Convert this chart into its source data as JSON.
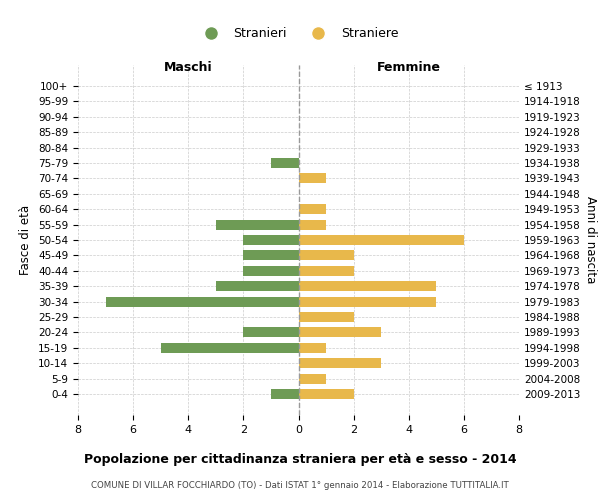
{
  "age_groups": [
    "100+",
    "95-99",
    "90-94",
    "85-89",
    "80-84",
    "75-79",
    "70-74",
    "65-69",
    "60-64",
    "55-59",
    "50-54",
    "45-49",
    "40-44",
    "35-39",
    "30-34",
    "25-29",
    "20-24",
    "15-19",
    "10-14",
    "5-9",
    "0-4"
  ],
  "birth_years": [
    "≤ 1913",
    "1914-1918",
    "1919-1923",
    "1924-1928",
    "1929-1933",
    "1934-1938",
    "1939-1943",
    "1944-1948",
    "1949-1953",
    "1954-1958",
    "1959-1963",
    "1964-1968",
    "1969-1973",
    "1974-1978",
    "1979-1983",
    "1984-1988",
    "1989-1993",
    "1994-1998",
    "1999-2003",
    "2004-2008",
    "2009-2013"
  ],
  "males": [
    0,
    0,
    0,
    0,
    0,
    1,
    0,
    0,
    0,
    3,
    2,
    2,
    2,
    3,
    7,
    0,
    2,
    5,
    0,
    0,
    1
  ],
  "females": [
    0,
    0,
    0,
    0,
    0,
    0,
    1,
    0,
    1,
    1,
    6,
    2,
    2,
    5,
    5,
    2,
    3,
    1,
    3,
    1,
    2
  ],
  "male_color": "#6e9b55",
  "female_color": "#e8b84b",
  "title": "Popolazione per cittadinanza straniera per età e sesso - 2014",
  "subtitle": "COMUNE DI VILLAR FOCCHIARDO (TO) - Dati ISTAT 1° gennaio 2014 - Elaborazione TUTTITALIA.IT",
  "xlabel_left": "Maschi",
  "xlabel_right": "Femmine",
  "ylabel_left": "Fasce di età",
  "ylabel_right": "Anni di nascita",
  "legend_male": "Stranieri",
  "legend_female": "Straniere",
  "xlim": 8,
  "background_color": "#ffffff",
  "grid_color": "#cccccc"
}
